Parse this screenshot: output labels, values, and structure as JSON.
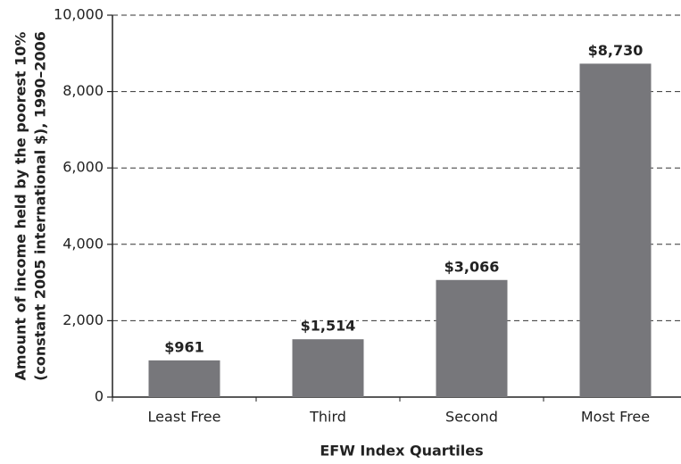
{
  "chart_data": {
    "type": "bar",
    "categories": [
      "Least Free",
      "Third",
      "Second",
      "Most Free"
    ],
    "values": [
      961,
      1514,
      3066,
      8730
    ],
    "value_labels": [
      "$961",
      "$1,514",
      "$3,066",
      "$8,730"
    ],
    "color": "#77777b",
    "ylim": [
      0,
      10000
    ],
    "yticks": [
      0,
      {
        "value": 2000,
        "label": "2,000"
      },
      {
        "value": 4000,
        "label": "4,000"
      },
      {
        "value": 6000,
        "label": "6,000"
      },
      {
        "value": 8000,
        "label": "8,000"
      },
      {
        "value": 10000,
        "label": "10,000"
      }
    ],
    "grid": true,
    "xlabel": "EFW Index Quartiles",
    "ylabel": [
      "Amount of income held by the poorest 10%",
      "(constant 2005 international $), 1990–2006"
    ]
  }
}
